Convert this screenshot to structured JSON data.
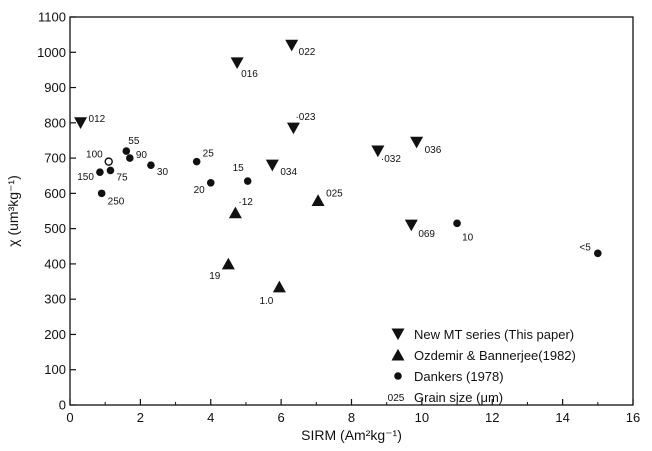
{
  "chart_data": {
    "type": "scatter",
    "xlabel": "SIRM (Am²kg⁻¹)",
    "ylabel": "χ (um³kg⁻¹)",
    "xlim": [
      0,
      16
    ],
    "ylim": [
      0,
      1100
    ],
    "x_ticks": [
      0,
      2,
      4,
      6,
      8,
      10,
      12,
      14,
      16
    ],
    "y_ticks": [
      0,
      100,
      200,
      300,
      400,
      500,
      600,
      700,
      800,
      900,
      1000,
      1100
    ],
    "legend_position": "bottom-right",
    "grid": false,
    "series": [
      {
        "name": "New MT series (This paper)",
        "marker": "triangle-down",
        "points": [
          {
            "x": 0.3,
            "y": 800,
            "label": "012"
          },
          {
            "x": 4.75,
            "y": 970,
            "label": "016"
          },
          {
            "x": 6.3,
            "y": 1020,
            "label": "022"
          },
          {
            "x": 6.35,
            "y": 785,
            "label": "·023"
          },
          {
            "x": 5.75,
            "y": 680,
            "label": "034"
          },
          {
            "x": 8.75,
            "y": 720,
            "label": "·032"
          },
          {
            "x": 9.85,
            "y": 745,
            "label": "036"
          },
          {
            "x": 9.7,
            "y": 510,
            "label": "069"
          }
        ]
      },
      {
        "name": "Ozdemir & Bannerjee(1982)",
        "marker": "triangle-up",
        "points": [
          {
            "x": 4.7,
            "y": 545,
            "label": "·12"
          },
          {
            "x": 7.05,
            "y": 580,
            "label": "025"
          },
          {
            "x": 4.5,
            "y": 400,
            "label": "19"
          },
          {
            "x": 5.95,
            "y": 335,
            "label": "1.0"
          }
        ]
      },
      {
        "name": "Dankers (1978)",
        "marker": "circle",
        "points": [
          {
            "x": 1.6,
            "y": 720,
            "label": "55"
          },
          {
            "x": 1.7,
            "y": 700,
            "label": "90"
          },
          {
            "x": 2.3,
            "y": 680,
            "label": "30"
          },
          {
            "x": 1.15,
            "y": 665,
            "label": "75"
          },
          {
            "x": 0.85,
            "y": 660,
            "label": "150"
          },
          {
            "x": 0.9,
            "y": 600,
            "label": "250"
          },
          {
            "x": 3.6,
            "y": 690,
            "label": "25"
          },
          {
            "x": 4.0,
            "y": 630,
            "label": "20"
          },
          {
            "x": 5.05,
            "y": 635,
            "label": "15"
          },
          {
            "x": 11.0,
            "y": 515,
            "label": "10"
          },
          {
            "x": 15.0,
            "y": 430,
            "label": "<5"
          }
        ]
      },
      {
        "name": "",
        "marker": "open-circle",
        "points": [
          {
            "x": 1.1,
            "y": 690,
            "label": "100"
          }
        ]
      }
    ],
    "legend_entries": [
      {
        "marker": "triangle-down",
        "text": "New MT series (This paper)"
      },
      {
        "marker": "triangle-up",
        "text": "Ozdemir & Bannerjee(1982)"
      },
      {
        "marker": "circle",
        "text": "Dankers (1978)"
      },
      {
        "marker": "none",
        "sample": "025",
        "text": "Grain size (μm)"
      }
    ]
  }
}
